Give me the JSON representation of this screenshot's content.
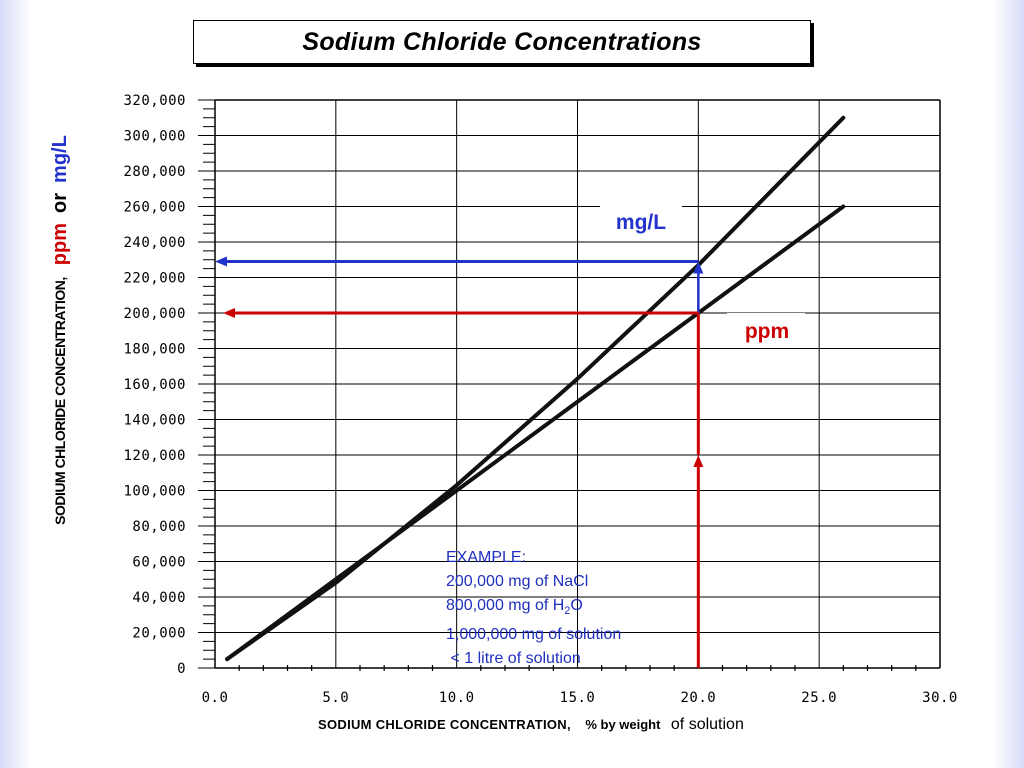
{
  "slide": {
    "title": "Sodium Chloride Concentrations",
    "y_axis": {
      "label": "SODIUM CHLORIDE CONCENTRATION,",
      "unit_ppm": "ppm",
      "unit_or": "or",
      "unit_mgl": "mg/L"
    },
    "x_axis": {
      "label": "SODIUM CHLORIDE CONCENTRATION,",
      "unit": "% by weight",
      "suffix": "of solution"
    },
    "example": {
      "heading": "EXAMPLE:",
      "line1": "200,000 mg of NaCl",
      "line2_pre": "800,000 mg of H",
      "line2_sub": "2",
      "line2_post": "O",
      "line3": "1,000,000 mg of solution",
      "line4": " < 1 litre of solution"
    },
    "colors": {
      "mgl": "#2233cc",
      "ppm": "#cc0000",
      "example": "#1f2fbf",
      "lines": "#111111"
    }
  },
  "chart_data": {
    "type": "line",
    "title": "Sodium Chloride Concentrations",
    "xlabel": "SODIUM CHLORIDE CONCENTRATION, % by weight of solution",
    "ylabel": "SODIUM CHLORIDE CONCENTRATION, ppm or mg/L",
    "xlim": [
      0,
      30
    ],
    "ylim": [
      0,
      320000
    ],
    "x_ticks": [
      "0.0",
      "5.0",
      "10.0",
      "15.0",
      "20.0",
      "25.0",
      "30.0"
    ],
    "y_ticks": [
      "0",
      "20,000",
      "40,000",
      "60,000",
      "80,000",
      "100,000",
      "120,000",
      "140,000",
      "160,000",
      "180,000",
      "200,000",
      "220,000",
      "240,000",
      "260,000",
      "280,000",
      "300,000",
      "320,000"
    ],
    "grid": true,
    "series": [
      {
        "name": "mg/L",
        "points": [
          [
            0.5,
            5000
          ],
          [
            5,
            48000
          ],
          [
            10,
            103000
          ],
          [
            15,
            163000
          ],
          [
            20,
            227000
          ],
          [
            26,
            310000
          ]
        ]
      },
      {
        "name": "ppm",
        "points": [
          [
            0.5,
            5000
          ],
          [
            5,
            50000
          ],
          [
            10,
            100000
          ],
          [
            15,
            150000
          ],
          [
            20,
            200000
          ],
          [
            26,
            260000
          ]
        ]
      }
    ],
    "annotations": [
      {
        "label": "mg/L",
        "x": 20,
        "y": 229000,
        "arrow_to_x": 0
      },
      {
        "label": "ppm",
        "x": 20,
        "y": 200000,
        "arrow_to_x": 0
      }
    ]
  }
}
